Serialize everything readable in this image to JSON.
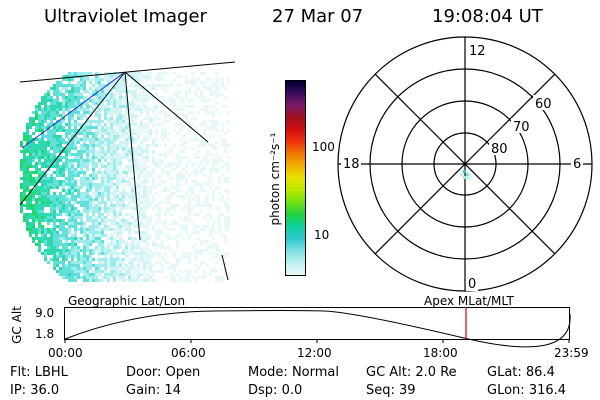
{
  "header": {
    "instrument": "Ultraviolet Imager",
    "date": "27 Mar 07",
    "time": "19:08:04 UT"
  },
  "colorbar": {
    "label": "photon cm⁻²s⁻¹",
    "ticks": [
      "100",
      "10"
    ],
    "scale": "log",
    "colors": [
      "#000030",
      "#3a0a5a",
      "#7a1a6a",
      "#a01020",
      "#d01010",
      "#f03010",
      "#f07a00",
      "#f0b000",
      "#e8e000",
      "#b8e800",
      "#70e010",
      "#20d040",
      "#10d0a0",
      "#30c8d0",
      "#80e0e0",
      "#c0f0f0",
      "#e8f8f8"
    ]
  },
  "polar_plot": {
    "mlt_labels": [
      "12",
      "18",
      "6",
      "0"
    ],
    "lat_labels": [
      "60",
      "70",
      "80"
    ]
  },
  "timeline": {
    "left_label": "Geographic Lat/Lon",
    "right_label": "Apex  MLat/MLT",
    "y_axis_label": "GC Alt",
    "y_ticks": [
      "9.0",
      "1.8"
    ],
    "x_ticks": [
      "00:00",
      "06:00",
      "12:00",
      "18:00",
      "23:59"
    ],
    "current_marker_color": "#cc0000"
  },
  "footer": {
    "row1": [
      {
        "key": "Flt:",
        "value": "LBHL"
      },
      {
        "key": "Door:",
        "value": "Open"
      },
      {
        "key": "Mode:",
        "value": "Normal"
      },
      {
        "key": "GC Alt:",
        "value": "2.0 Re"
      },
      {
        "key": "GLat:",
        "value": "86.4"
      }
    ],
    "row2": [
      {
        "key": "IP:",
        "value": "36.0"
      },
      {
        "key": "Gain:",
        "value": "14"
      },
      {
        "key": "Dsp:",
        "value": "0.0"
      },
      {
        "key": "Seq:",
        "value": "39"
      },
      {
        "key": "GLon:",
        "value": "316.4"
      }
    ]
  }
}
